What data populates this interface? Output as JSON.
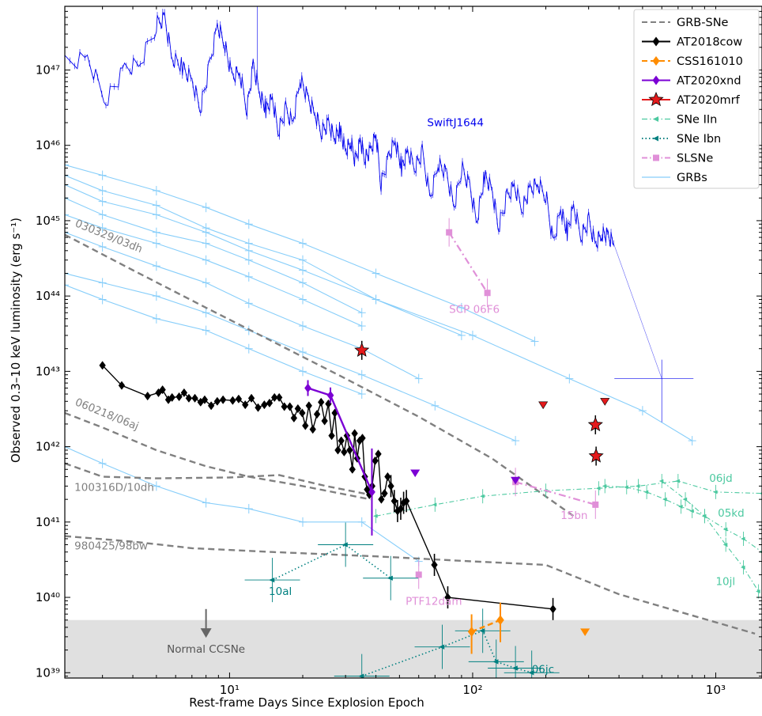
{
  "chart_data": {
    "type": "line",
    "xlabel": "Rest-frame Days Since Explosion Epoch",
    "ylabel": "Observed 0.3–10 keV luminosity (erg s⁻¹)",
    "xscale": "log",
    "yscale": "log",
    "xlim": [
      2.1,
      1550
    ],
    "ylim": [
      8.5e+38,
      7e+47
    ],
    "x_major_ticks": [
      10,
      100,
      1000
    ],
    "x_tick_labels": [
      "10¹",
      "10²",
      "10³"
    ],
    "y_major_ticks": [
      1e+39,
      1e+40,
      1e+41,
      1e+42,
      1e+43,
      1e+44,
      1e+45,
      1e+46,
      1e+47
    ],
    "y_tick_labels": [
      "10³⁹",
      "10⁴⁰",
      "10⁴¹",
      "10⁴²",
      "10⁴³",
      "10⁴⁴",
      "10⁴⁵",
      "10⁴⁶",
      "10⁴⁷"
    ],
    "shaded_band": {
      "y_range": [
        8.5e+38,
        5e+39
      ],
      "color": "#e0e0e0"
    },
    "legend": {
      "placement": "top-right",
      "entries": [
        {
          "label": "GRB-SNe",
          "color": "#808080",
          "style": "dashed",
          "marker": "none"
        },
        {
          "label": "AT2018cow",
          "color": "#000000",
          "style": "solid",
          "marker": "diamond"
        },
        {
          "label": "CSS161010",
          "color": "#ff8c00",
          "style": "dashed",
          "marker": "diamond"
        },
        {
          "label": "AT2020xnd",
          "color": "#7b00d4",
          "style": "solid",
          "marker": "diamond"
        },
        {
          "label": "AT2020mrf",
          "color": "#e41a1c",
          "style": "solid",
          "marker": "star"
        },
        {
          "label": "SNe IIn",
          "color": "#4cc9a0",
          "style": "dashdot",
          "marker": "arrow"
        },
        {
          "label": "SNe Ibn",
          "color": "#008080",
          "style": "dotted",
          "marker": "arrow"
        },
        {
          "label": "SLSNe",
          "color": "#e090d8",
          "style": "dashdot",
          "marker": "square"
        },
        {
          "label": "GRBs",
          "color": "#87cefa",
          "style": "solid",
          "marker": "none"
        }
      ]
    },
    "colors": {
      "swift": "#0000ee",
      "grb": "#87cefa",
      "grbsne": "#808080",
      "cow": "#000000",
      "css": "#ff8c00",
      "xnd": "#7b00d4",
      "mrf": "#e41a1c",
      "iin": "#4cc9a0",
      "ibn": "#008080",
      "slsn": "#e090d8"
    },
    "annotations": [
      {
        "text": "SwiftJ1644",
        "color": "#0000ee"
      },
      {
        "text": "030329/03dh",
        "color": "#808080"
      },
      {
        "text": "060218/06aj",
        "color": "#808080"
      },
      {
        "text": "100316D/10dh",
        "color": "#808080"
      },
      {
        "text": "980425/98bw",
        "color": "#808080"
      },
      {
        "text": "SCP 06F6",
        "color": "#e090d8"
      },
      {
        "text": "15bn",
        "color": "#e090d8"
      },
      {
        "text": "PTF12dam",
        "color": "#e090d8"
      },
      {
        "text": "10al",
        "color": "#008080"
      },
      {
        "text": "06jc",
        "color": "#008080"
      },
      {
        "text": "06jd",
        "color": "#4cc9a0"
      },
      {
        "text": "05kd",
        "color": "#4cc9a0"
      },
      {
        "text": "10jl",
        "color": "#4cc9a0"
      },
      {
        "text": "Normal CCSNe",
        "color": "#555555"
      }
    ],
    "series": [
      {
        "name": "GRB-SNe",
        "id": "grbsne_03dh",
        "x": [
          2.1,
          4,
          8,
          15,
          30,
          60,
          120,
          260
        ],
        "y": [
          6.5e+44,
          2.2e+44,
          7e+43,
          2.5e+43,
          8e+42,
          2.5e+42,
          7e+41,
          1.2e+41
        ]
      },
      {
        "name": "GRB-SNe",
        "id": "grbsne_06aj",
        "x": [
          2.1,
          3,
          5,
          8,
          12,
          20,
          38
        ],
        "y": [
          2.8e+42,
          1.8e+42,
          9e+41,
          5.5e+41,
          4e+41,
          3e+41,
          2e+41
        ]
      },
      {
        "name": "GRB-SNe",
        "id": "grbsne_10dh",
        "x": [
          2.1,
          3,
          5,
          10,
          16,
          25,
          38
        ],
        "y": [
          6e+41,
          4e+41,
          3.8e+41,
          3.9e+41,
          4.2e+41,
          3e+41,
          2.3e+41
        ]
      },
      {
        "name": "GRB-SNe",
        "id": "grbsne_98bw",
        "x": [
          2.1,
          4,
          7,
          15,
          40,
          100,
          200,
          400,
          1450
        ],
        "y": [
          6.5e+40,
          5.5e+40,
          4.5e+40,
          4e+40,
          3.5e+40,
          3e+40,
          2.7e+40,
          1.1e+40,
          3.3e+39
        ]
      },
      {
        "name": "AT2018cow",
        "x": [
          3.0,
          3.6,
          4.6,
          5.1,
          5.3,
          5.6,
          5.8,
          6.2,
          6.5,
          6.8,
          7.2,
          7.6,
          7.9,
          8.4,
          8.9,
          9.4,
          10.3,
          10.9,
          11.6,
          12.3,
          13.1,
          13.9,
          14.6,
          15.3,
          16.0,
          16.8,
          17.7,
          18.4,
          19.1,
          19.9,
          20.5,
          21.2,
          22.0,
          22.9,
          23.8,
          24.6,
          25.5,
          26.3,
          27.1,
          27.9,
          28.8,
          29.6,
          30.4,
          31.2,
          32.0,
          32.7,
          33.5,
          34.3,
          35.2,
          36.0,
          36.8,
          37.6,
          38.6,
          39.7,
          40.9,
          42.1,
          43.4,
          44.7,
          46.1,
          47.6,
          49.1,
          50.6,
          52.0,
          53.4,
          69.6,
          79.0,
          214.0
        ],
        "y": [
          1.2e+43,
          6.5e+42,
          4.7e+42,
          5.2e+42,
          5.7e+42,
          4.2e+42,
          4.5e+42,
          4.6e+42,
          5.2e+42,
          4.4e+42,
          4.4e+42,
          3.9e+42,
          4.2e+42,
          3.5e+42,
          4e+42,
          4.2e+42,
          4.1e+42,
          4.3e+42,
          3.6e+42,
          4.4e+42,
          3.3e+42,
          3.6e+42,
          3.8e+42,
          4.5e+42,
          4.5e+42,
          3.4e+42,
          3.4e+42,
          2.4e+42,
          3.2e+42,
          2.8e+42,
          1.9e+42,
          3.5e+42,
          1.7e+42,
          2.7e+42,
          3.9e+42,
          2.2e+42,
          3.7e+42,
          1.4e+42,
          2.8e+42,
          9e+41,
          1.2e+42,
          8.5e+41,
          1.4e+42,
          9e+41,
          5e+41,
          1.5e+42,
          7e+41,
          1.2e+42,
          1.3e+42,
          4e+41,
          2.7e+41,
          2.3e+41,
          3e+41,
          6.5e+41,
          8e+41,
          2e+41,
          2.4e+41,
          4e+41,
          3e+41,
          1.9e+41,
          1.4e+41,
          1.5e+41,
          1.8e+41,
          1.9e+41,
          2.7e+40,
          1e+40,
          7e+39
        ]
      },
      {
        "name": "AT2020xnd",
        "x": [
          21,
          26,
          38.5
        ],
        "y": [
          6e+42,
          4.8e+42,
          2.5e+41
        ]
      },
      {
        "name": "CSS161010",
        "x": [
          99,
          130
        ],
        "y": [
          3.5e+39,
          5e+39
        ]
      },
      {
        "name": "AT2020mrf",
        "x": [
          35,
          320,
          322
        ],
        "y": [
          1.9e+43,
          1.95e+42,
          7.5e+41
        ]
      },
      {
        "name": "SwiftJ1644",
        "x": [
          2.1,
          2.6,
          3.1,
          3.7,
          4.3,
          5.0,
          5.4,
          5.8,
          6.4,
          7.0,
          7.6,
          8.2,
          8.9,
          9.5,
          10.2,
          11.0,
          11.8,
          12.5,
          13.3,
          14.1,
          15.0,
          15.9,
          17.0,
          18.2,
          19.5,
          21.0,
          22.5,
          24.0,
          25.5,
          27.0,
          28.5,
          30.0,
          31.5,
          33.0,
          34.5,
          36.0,
          38.0,
          40.0,
          42.0,
          45.0,
          48.0,
          51.0,
          54.0,
          58.0,
          62.0,
          67.0,
          72.0,
          78.0,
          84.0,
          90.0,
          97.0,
          104.0,
          112.0,
          120.0,
          128.0,
          138.0,
          148.0,
          160.0,
          172.0,
          185.0,
          200.0,
          215.0,
          230.0,
          245.0,
          260.0,
          280.0,
          300.0,
          320.0,
          340.0,
          360.0,
          380.0
        ],
        "y": [
          1.2e+47,
          1.5e+47,
          4e+46,
          1e+47,
          1.2e+47,
          4e+47,
          5e+47,
          1.5e+47,
          1.1e+47,
          7e+46,
          3e+46,
          1e+47,
          4e+47,
          2.5e+47,
          8e+46,
          9e+46,
          3e+46,
          1.2e+47,
          5e+46,
          3e+46,
          4e+46,
          1.5e+46,
          3e+46,
          2e+46,
          8e+46,
          4e+46,
          2.5e+46,
          1.5e+46,
          2e+46,
          1.3e+46,
          1.6e+46,
          8e+45,
          1.1e+46,
          6e+45,
          1.2e+46,
          7e+45,
          8e+45,
          1.4e+46,
          3e+45,
          7e+45,
          1.2e+46,
          5e+45,
          8e+45,
          5e+45,
          8e+45,
          2e+45,
          6e+45,
          4e+45,
          1.5e+45,
          5e+45,
          3e+45,
          1e+45,
          4e+45,
          2.5e+45,
          8e+44,
          2e+45,
          3e+45,
          1.5e+45,
          2.5e+45,
          3e+45,
          2.2e+45,
          5e+44,
          1.5e+45,
          7e+44,
          1.5e+45,
          6e+44,
          1e+45,
          5e+44,
          7e+44,
          6e+44,
          5e+44
        ]
      },
      {
        "name": "SwiftJ1644",
        "id": "swift_late",
        "x": [
          600
        ],
        "y": [
          8e+42
        ]
      },
      {
        "name": "GRBs",
        "id": "grb1",
        "x": [
          2.1,
          3,
          5,
          8,
          12,
          20,
          40,
          90,
          180
        ],
        "y": [
          5.5e+45,
          4e+45,
          2.5e+45,
          1.5e+45,
          9e+44,
          5e+44,
          2e+44,
          7e+43,
          2.5e+43
        ]
      },
      {
        "name": "GRBs",
        "id": "grb2",
        "x": [
          2.1,
          3,
          5,
          8,
          12,
          20,
          40,
          90
        ],
        "y": [
          4e+45,
          2.5e+45,
          1.6e+45,
          8e+44,
          5e+44,
          3e+44,
          9e+43,
          3e+43
        ]
      },
      {
        "name": "GRBs",
        "id": "grb3",
        "x": [
          2.1,
          3,
          5,
          8,
          12,
          20,
          40,
          100,
          250,
          500,
          800
        ],
        "y": [
          3e+45,
          1.8e+45,
          1.2e+45,
          7e+44,
          4e+44,
          2.2e+44,
          9e+43,
          3e+43,
          8e+42,
          3e+42,
          1.2e+42
        ]
      },
      {
        "name": "GRBs",
        "id": "grb4",
        "x": [
          2.1,
          3,
          5,
          8,
          12,
          20,
          35
        ],
        "y": [
          2e+45,
          1.2e+45,
          7e+44,
          5e+44,
          3e+44,
          1.5e+44,
          6e+43
        ]
      },
      {
        "name": "GRBs",
        "id": "grb5",
        "x": [
          2.1,
          3,
          5,
          8,
          12,
          20,
          35
        ],
        "y": [
          1.2e+45,
          8e+44,
          5e+44,
          3e+44,
          1.8e+44,
          9e+43,
          4e+43
        ]
      },
      {
        "name": "GRBs",
        "id": "grb6",
        "x": [
          2.1,
          3,
          5,
          8,
          12,
          20,
          35,
          60
        ],
        "y": [
          7e+44,
          4.5e+44,
          2.5e+44,
          1.5e+44,
          8e+43,
          4e+43,
          2e+43,
          8e+42
        ]
      },
      {
        "name": "GRBs",
        "id": "grb7",
        "x": [
          2.1,
          3,
          5,
          8,
          12,
          20,
          35,
          70,
          150
        ],
        "y": [
          2e+44,
          1.5e+44,
          1e+44,
          6e+43,
          3.5e+43,
          1.8e+43,
          9e+42,
          3.5e+42,
          1.2e+42
        ]
      },
      {
        "name": "GRBs",
        "id": "grb8",
        "x": [
          2.1,
          3,
          5,
          8,
          12,
          20,
          35
        ],
        "y": [
          1.4e+44,
          9e+43,
          5e+43,
          3.5e+43,
          2e+43,
          1e+43,
          5e+42
        ]
      },
      {
        "name": "GRBs",
        "id": "grb9",
        "x": [
          2.1,
          3,
          5,
          8,
          12,
          20,
          35,
          60
        ],
        "y": [
          1e+42,
          6e+41,
          3e+41,
          1.8e+41,
          1.5e+41,
          1e+41,
          1e+41,
          3e+40
        ]
      },
      {
        "name": "SNe IIn",
        "id": "06jd",
        "x": [
          40,
          70,
          110,
          200,
          330,
          480,
          700,
          1000,
          1550
        ],
        "y": [
          1.2e+41,
          1.7e+41,
          2.2e+41,
          2.6e+41,
          2.8e+41,
          3e+41,
          3.5e+41,
          2.5e+41,
          2.4e+41
        ]
      },
      {
        "name": "SNe IIn",
        "id": "05kd",
        "x": [
          350,
          430,
          520,
          620,
          720,
          800,
          900,
          1100,
          1300,
          1550
        ],
        "y": [
          3e+41,
          2.9e+41,
          2.5e+41,
          2e+41,
          1.6e+41,
          1.4e+41,
          1.2e+41,
          8e+40,
          6e+40,
          4e+40
        ]
      },
      {
        "name": "SNe IIn",
        "id": "10jl",
        "x": [
          600,
          750,
          900,
          1100,
          1300,
          1500
        ],
        "y": [
          3.5e+41,
          2e+41,
          1.2e+41,
          5e+40,
          2.5e+40,
          1.2e+40
        ]
      },
      {
        "name": "SNe Ibn",
        "id": "10al",
        "x": [
          15,
          30,
          46
        ],
        "y": [
          1.7e+40,
          5e+40,
          1.8e+40
        ]
      },
      {
        "name": "SNe Ibn",
        "id": "06jc",
        "x": [
          35,
          75,
          110,
          125,
          150,
          175
        ],
        "y": [
          9e+38,
          2.2e+39,
          3.6e+39,
          1.4e+39,
          1.15e+39,
          1e+39
        ]
      },
      {
        "name": "SLSNe",
        "id": "scp06f6",
        "x": [
          80,
          115
        ],
        "y": [
          7e+44,
          1.1e+44
        ]
      },
      {
        "name": "SLSNe",
        "id": "15bn",
        "x": [
          150,
          320
        ],
        "y": [
          3.4e+41,
          1.7e+41
        ]
      },
      {
        "name": "SLSNe",
        "id": "ptf12dam",
        "x": [
          60
        ],
        "y": [
          2e+40
        ]
      }
    ],
    "upper_limits": [
      {
        "series": "AT2020mrf",
        "x": [
          195,
          350
        ],
        "y": [
          3.6e+42,
          4e+42
        ],
        "color": "#e41a1c"
      },
      {
        "series": "AT2020xnd",
        "x": [
          58,
          150
        ],
        "y": [
          4.5e+41,
          3.6e+41
        ],
        "color": "#7b00d4"
      },
      {
        "series": "CSS161010",
        "x": [
          290
        ],
        "y": [
          3.5e+39
        ],
        "color": "#ff8c00"
      }
    ]
  }
}
